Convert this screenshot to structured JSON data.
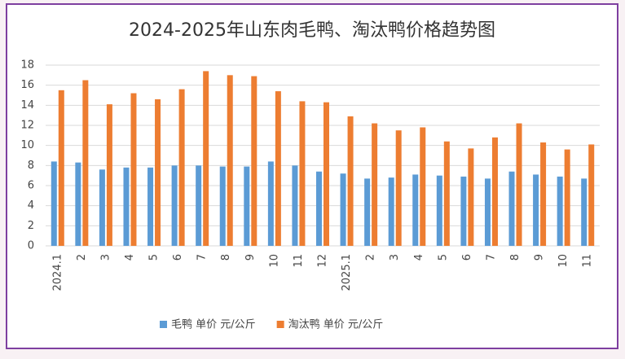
{
  "chart_data": {
    "type": "bar",
    "title": "2024-2025年山东肉毛鸭、淘汰鸭价格趋势图",
    "categories": [
      "2024.1",
      "2",
      "3",
      "4",
      "5",
      "6",
      "7",
      "8",
      "9",
      "10",
      "11",
      "12",
      "2025.1",
      "2",
      "3",
      "4",
      "5",
      "6",
      "7",
      "8",
      "9",
      "10",
      "11"
    ],
    "series": [
      {
        "name": "毛鸭 单价 元/公斤",
        "color": "#5b9bd5",
        "values": [
          8.4,
          8.3,
          7.6,
          7.8,
          7.8,
          8.0,
          8.0,
          7.9,
          7.9,
          8.4,
          8.0,
          7.4,
          7.2,
          6.7,
          6.8,
          7.1,
          7.0,
          6.9,
          6.7,
          7.4,
          7.1,
          6.9,
          6.7
        ]
      },
      {
        "name": "淘汰鸭 单价 元/公斤",
        "color": "#ed7d31",
        "values": [
          15.5,
          16.5,
          14.1,
          15.2,
          14.6,
          15.6,
          17.4,
          17.0,
          16.9,
          15.4,
          14.4,
          14.3,
          12.9,
          12.2,
          11.5,
          11.8,
          10.4,
          9.7,
          10.8,
          12.2,
          10.3,
          9.6,
          10.1
        ]
      }
    ],
    "ylim": [
      0,
      18
    ],
    "yticks": [
      0,
      2,
      4,
      6,
      8,
      10,
      12,
      14,
      16,
      18
    ],
    "grid": true,
    "legend": "bottom"
  }
}
